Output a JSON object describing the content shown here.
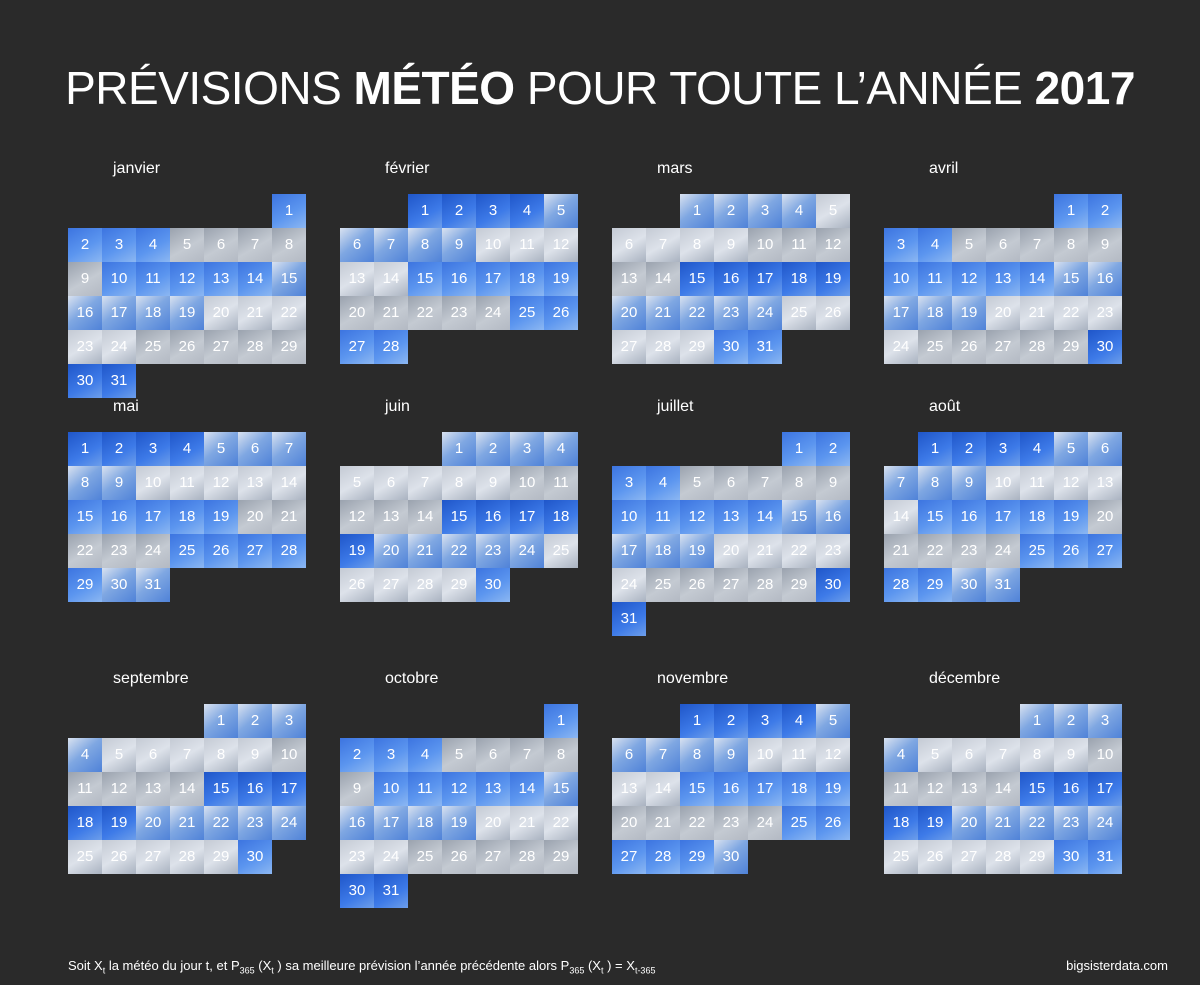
{
  "title": {
    "part1": "PRÉVISIONS ",
    "bold1": "MÉTÉO",
    "part2": " POUR TOUTE L’ANNÉE ",
    "bold2": "2017"
  },
  "colors": {
    "background": "#2a2a2a",
    "sunny": "#3c74e0",
    "cloudy": "#cfd5de"
  },
  "months": [
    {
      "name": "janvier",
      "days": 31,
      "start": 6
    },
    {
      "name": "février",
      "days": 28,
      "start": 2
    },
    {
      "name": "mars",
      "days": 31,
      "start": 2
    },
    {
      "name": "avril",
      "days": 30,
      "start": 5
    },
    {
      "name": "mai",
      "days": 31,
      "start": 0
    },
    {
      "name": "juin",
      "days": 30,
      "start": 3
    },
    {
      "name": "juillet",
      "days": 31,
      "start": 5
    },
    {
      "name": "août",
      "days": 31,
      "start": 1
    },
    {
      "name": "septembre",
      "days": 30,
      "start": 4
    },
    {
      "name": "octobre",
      "days": 31,
      "start": 6
    },
    {
      "name": "novembre",
      "days": 30,
      "start": 2
    },
    {
      "name": "décembre",
      "days": 31,
      "start": 4
    }
  ],
  "footer": {
    "t1": "Soit X",
    "s1": "t",
    "t2": " la météo du jour t, et P",
    "s2": "365",
    "t3": " (X",
    "s3": "t",
    "t4": " ) sa meilleure prévision l’année précédente alors P",
    "s4": "365",
    "t5": " (X",
    "s5": "t",
    "t6": " ) = X",
    "s6": "t-365"
  },
  "credit": "bigsisterdata.com"
}
